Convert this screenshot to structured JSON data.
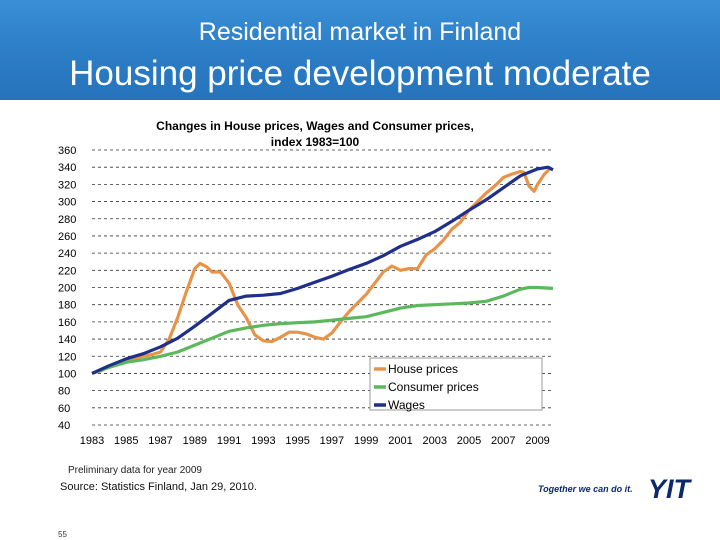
{
  "header": {
    "supertitle": "Residential market in Finland",
    "title": "Housing price development moderate"
  },
  "chart_data": {
    "type": "line",
    "title": "Changes in House prices, Wages and Consumer prices, index 1983=100",
    "title_lines": [
      "Changes in House prices, Wages and Consumer prices,",
      "index 1983=100"
    ],
    "xlabel": "",
    "ylabel": "",
    "xlim": [
      1983,
      2009.9
    ],
    "ylim": [
      40,
      360
    ],
    "yticks": [
      40,
      60,
      80,
      100,
      120,
      140,
      160,
      180,
      200,
      220,
      240,
      260,
      280,
      300,
      320,
      340,
      360
    ],
    "xticks": [
      1983,
      1985,
      1987,
      1989,
      1991,
      1993,
      1995,
      1997,
      1999,
      2001,
      2003,
      2005,
      2007,
      2009
    ],
    "grid": "horizontal dashed",
    "legend_placement": "bottom-right",
    "series": [
      {
        "name": "House prices",
        "color": "#e8934a",
        "points": [
          [
            1983,
            100
          ],
          [
            1983.5,
            103
          ],
          [
            1984,
            108
          ],
          [
            1984.5,
            112
          ],
          [
            1985,
            115
          ],
          [
            1985.5,
            118
          ],
          [
            1986,
            120
          ],
          [
            1986.5,
            122
          ],
          [
            1987,
            125
          ],
          [
            1987.5,
            140
          ],
          [
            1988,
            165
          ],
          [
            1988.5,
            195
          ],
          [
            1989,
            222
          ],
          [
            1989.3,
            228
          ],
          [
            1989.7,
            224
          ],
          [
            1990,
            218
          ],
          [
            1990.5,
            218
          ],
          [
            1991,
            205
          ],
          [
            1991.5,
            180
          ],
          [
            1992,
            165
          ],
          [
            1992.5,
            145
          ],
          [
            1993,
            138
          ],
          [
            1993.5,
            137
          ],
          [
            1994,
            142
          ],
          [
            1994.5,
            148
          ],
          [
            1995,
            148
          ],
          [
            1995.5,
            146
          ],
          [
            1996,
            142
          ],
          [
            1996.5,
            140
          ],
          [
            1997,
            147
          ],
          [
            1997.5,
            160
          ],
          [
            1998,
            172
          ],
          [
            1998.5,
            182
          ],
          [
            1999,
            192
          ],
          [
            1999.5,
            205
          ],
          [
            2000,
            218
          ],
          [
            2000.5,
            225
          ],
          [
            2001,
            220
          ],
          [
            2001.5,
            222
          ],
          [
            2002,
            222
          ],
          [
            2002.5,
            238
          ],
          [
            2003,
            245
          ],
          [
            2003.5,
            255
          ],
          [
            2004,
            268
          ],
          [
            2004.5,
            276
          ],
          [
            2005,
            290
          ],
          [
            2005.5,
            300
          ],
          [
            2006,
            310
          ],
          [
            2006.5,
            318
          ],
          [
            2007,
            328
          ],
          [
            2007.5,
            332
          ],
          [
            2008,
            335
          ],
          [
            2008.2,
            334
          ],
          [
            2008.5,
            318
          ],
          [
            2008.8,
            312
          ],
          [
            2009,
            320
          ],
          [
            2009.4,
            332
          ],
          [
            2009.8,
            340
          ]
        ]
      },
      {
        "name": "Consumer prices",
        "color": "#5cb85c",
        "points": [
          [
            1983,
            100
          ],
          [
            1984,
            107
          ],
          [
            1985,
            113
          ],
          [
            1986,
            116
          ],
          [
            1987,
            120
          ],
          [
            1988,
            125
          ],
          [
            1989,
            133
          ],
          [
            1990,
            141
          ],
          [
            1991,
            149
          ],
          [
            1992,
            153
          ],
          [
            1993,
            156
          ],
          [
            1994,
            158
          ],
          [
            1995,
            159
          ],
          [
            1996,
            160
          ],
          [
            1997,
            162
          ],
          [
            1998,
            164
          ],
          [
            1999,
            166
          ],
          [
            2000,
            171
          ],
          [
            2001,
            176
          ],
          [
            2002,
            179
          ],
          [
            2003,
            180
          ],
          [
            2004,
            181
          ],
          [
            2005,
            182
          ],
          [
            2006,
            184
          ],
          [
            2007,
            190
          ],
          [
            2008,
            198
          ],
          [
            2008.5,
            200
          ],
          [
            2009,
            200
          ],
          [
            2009.9,
            199
          ]
        ]
      },
      {
        "name": "Wages",
        "color": "#1f2f8a",
        "points": [
          [
            1983,
            100
          ],
          [
            1984,
            109
          ],
          [
            1985,
            117
          ],
          [
            1986,
            123
          ],
          [
            1987,
            131
          ],
          [
            1988,
            141
          ],
          [
            1989,
            155
          ],
          [
            1990,
            170
          ],
          [
            1991,
            185
          ],
          [
            1992,
            190
          ],
          [
            1993,
            191
          ],
          [
            1994,
            193
          ],
          [
            1995,
            199
          ],
          [
            1996,
            206
          ],
          [
            1997,
            213
          ],
          [
            1998,
            221
          ],
          [
            1999,
            228
          ],
          [
            2000,
            237
          ],
          [
            2001,
            248
          ],
          [
            2002,
            256
          ],
          [
            2003,
            265
          ],
          [
            2004,
            277
          ],
          [
            2005,
            290
          ],
          [
            2006,
            302
          ],
          [
            2007,
            316
          ],
          [
            2008,
            330
          ],
          [
            2009,
            338
          ],
          [
            2009.6,
            340
          ],
          [
            2009.9,
            337
          ]
        ]
      }
    ]
  },
  "footer": {
    "note": "Preliminary data for year 2009",
    "source": "Source: Statistics Finland, Jan 29, 2010.",
    "slogan": "Together we can do it.",
    "logo_text": "YIT",
    "page_number": "55"
  }
}
